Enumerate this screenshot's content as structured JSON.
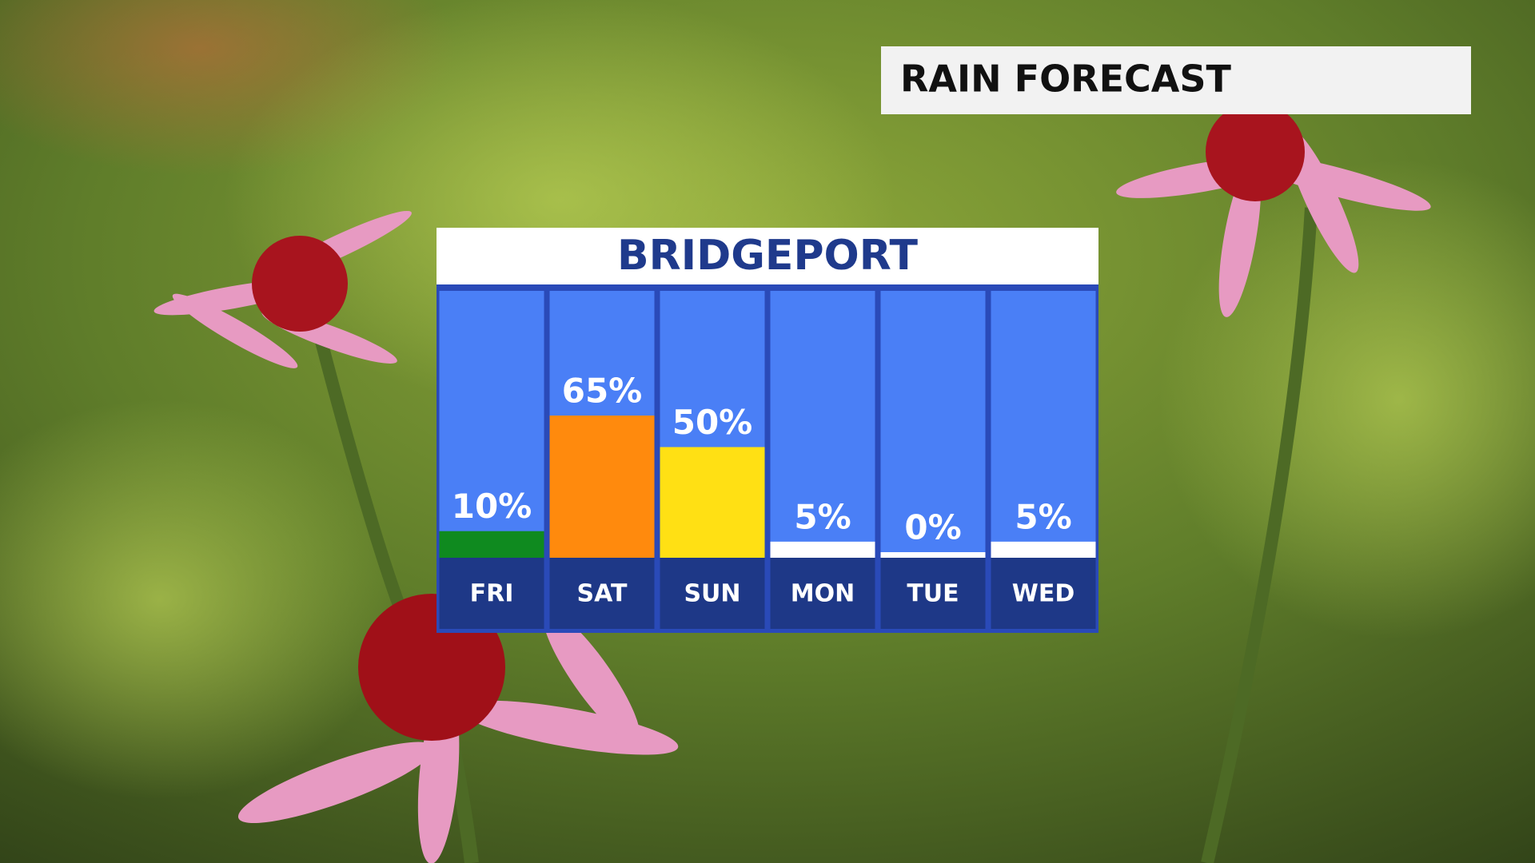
{
  "chart_data": {
    "type": "bar",
    "title": "RAIN FORECAST",
    "subtitle": "BRIDGEPORT",
    "categories": [
      "FRI",
      "SAT",
      "SUN",
      "MON",
      "TUE",
      "WED"
    ],
    "values": [
      10,
      65,
      50,
      5,
      0,
      5
    ],
    "value_labels": [
      "10%",
      "65%",
      "50%",
      "5%",
      "0%",
      "5%"
    ],
    "colors": [
      "#0f8a1f",
      "#ff8a0d",
      "#ffe014",
      "#ffffff",
      "#ffffff",
      "#ffffff"
    ]
  }
}
